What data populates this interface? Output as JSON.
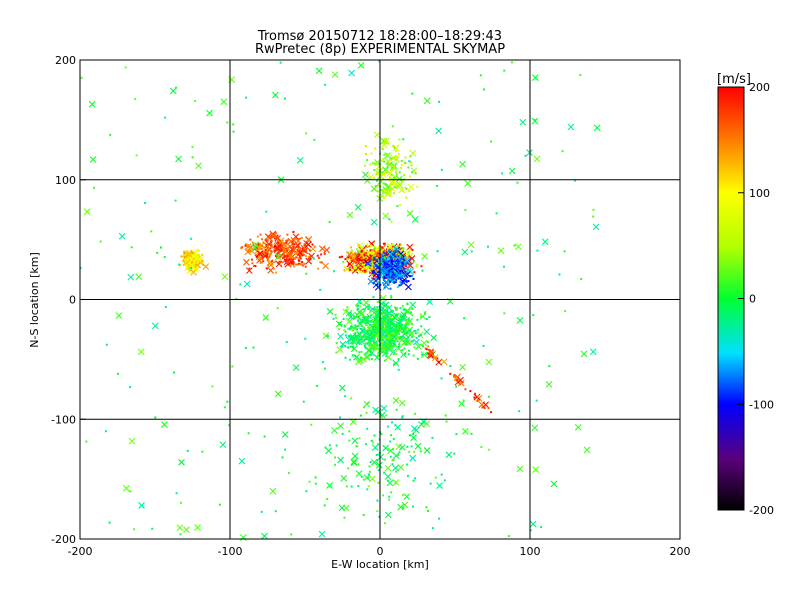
{
  "chart_data": {
    "type": "scatter",
    "title": "Tromsø 20150712 18:28:00–18:29:43",
    "subtitle": "RwPretec (8p) EXPERIMENTAL SKYMAP",
    "xlabel": "E-W location [km]",
    "ylabel": "N-S location [km]",
    "xlim": [
      -200,
      200
    ],
    "ylim": [
      -200,
      200
    ],
    "xticks": [
      "-200",
      "-100",
      "0",
      "100",
      "200"
    ],
    "yticks": [
      "-200",
      "-100",
      "0",
      "100",
      "200"
    ],
    "grid": true,
    "colorbar": {
      "label": "[m/s]",
      "range": [
        -200,
        200
      ],
      "ticks": [
        "-200",
        "-100",
        "0",
        "100",
        "200"
      ],
      "colormap": "rainbow (black-purple-blue-cyan-green-yellow-red)"
    },
    "markers": [
      "x (cross)",
      "small point"
    ],
    "clusters": [
      {
        "x": [
          -30,
          30
        ],
        "y": [
          15,
          50
        ],
        "v_mean": 150,
        "density": "very high",
        "mixed": true
      },
      {
        "x": [
          -10,
          25
        ],
        "y": [
          5,
          45
        ],
        "v_mean": -80,
        "density": "high"
      },
      {
        "x": [
          -40,
          40
        ],
        "y": [
          -60,
          10
        ],
        "v_mean": 0,
        "density": "very high"
      },
      {
        "x": [
          -60,
          60
        ],
        "y": [
          -200,
          -60
        ],
        "v_mean": 0,
        "density": "medium"
      },
      {
        "x": [
          -135,
          -115
        ],
        "y": [
          20,
          45
        ],
        "v_mean": 110,
        "density": "medium"
      },
      {
        "x": [
          -15,
          30
        ],
        "y": [
          60,
          150
        ],
        "v_mean": 50,
        "density": "medium"
      },
      {
        "x": [
          -100,
          -30
        ],
        "y": [
          20,
          60
        ],
        "v_mean": 170,
        "density": "high"
      },
      {
        "x": [
          30,
          75
        ],
        "y": [
          -95,
          -40
        ],
        "v_mean": 170,
        "density": "low",
        "shape": "diagonal trail"
      },
      {
        "x": [
          -200,
          150
        ],
        "y": [
          -200,
          200
        ],
        "v_mean": 0,
        "density": "sparse"
      }
    ]
  }
}
